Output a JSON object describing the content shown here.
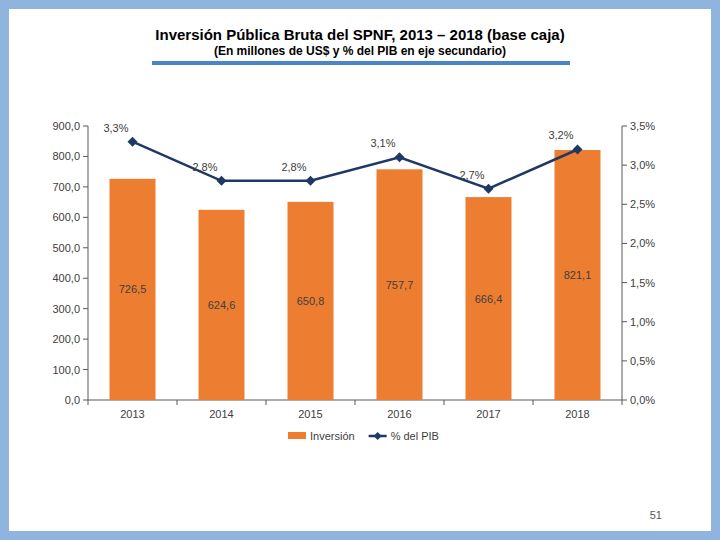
{
  "page_number": "51",
  "chart_data": {
    "type": "bar",
    "title": "Inversión Pública Bruta del SPNF, 2013 – 2018 (base caja)",
    "subtitle": "(En millones de US$ y % del PIB en eje secundario)",
    "categories": [
      "2013",
      "2014",
      "2015",
      "2016",
      "2017",
      "2018"
    ],
    "series": [
      {
        "name": "Inversión",
        "type": "bar",
        "color": "#ed7d31",
        "values": [
          726.5,
          624.6,
          650.8,
          757.7,
          666.4,
          821.1
        ],
        "value_labels": [
          "726,5",
          "624,6",
          "650,8",
          "757,7",
          "666,4",
          "821,1"
        ]
      },
      {
        "name": "% del PIB",
        "type": "line",
        "color": "#1f3864",
        "marker": "diamond",
        "axis": "y2",
        "values": [
          3.3,
          2.8,
          2.8,
          3.1,
          2.7,
          3.2
        ],
        "value_labels": [
          "3,3%",
          "2,8%",
          "2,8%",
          "3,1%",
          "2,7%",
          "3,2%"
        ]
      }
    ],
    "ylim": [
      0,
      900
    ],
    "yticks": [
      {
        "value": 0,
        "label": "0,0"
      },
      {
        "value": 100,
        "label": "100,0"
      },
      {
        "value": 200,
        "label": "200,0"
      },
      {
        "value": 300,
        "label": "300,0"
      },
      {
        "value": 400,
        "label": "400,0"
      },
      {
        "value": 500,
        "label": "500,0"
      },
      {
        "value": 600,
        "label": "600,0"
      },
      {
        "value": 700,
        "label": "700,0"
      },
      {
        "value": 800,
        "label": "800,0"
      },
      {
        "value": 900,
        "label": "900,0"
      }
    ],
    "y2lim": [
      0,
      3.5
    ],
    "y2ticks": [
      {
        "value": 0,
        "label": "0,0%"
      },
      {
        "value": 0.5,
        "label": "0,5%"
      },
      {
        "value": 1,
        "label": "1,0%"
      },
      {
        "value": 1.5,
        "label": "1,5%"
      },
      {
        "value": 2,
        "label": "2,0%"
      },
      {
        "value": 2.5,
        "label": "2,5%"
      },
      {
        "value": 3,
        "label": "3,0%"
      },
      {
        "value": 3.5,
        "label": "3,5%"
      }
    ],
    "grid": false,
    "legend": "bottom",
    "data_labels": true
  }
}
